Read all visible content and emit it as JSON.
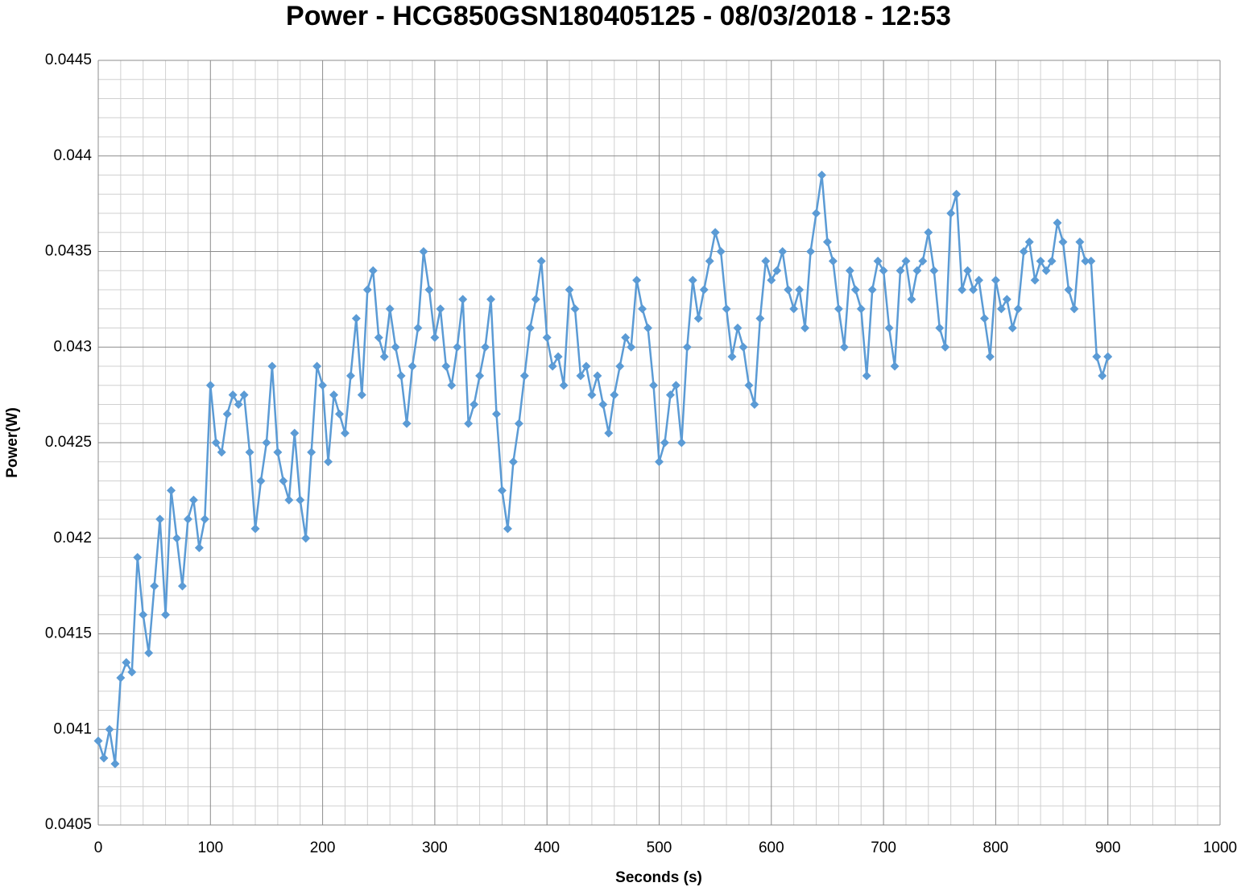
{
  "chart_data": {
    "type": "line",
    "title": "Power - HCG850GSN180405125 - 08/03/2018 - 12:53",
    "xlabel": "Seconds (s)",
    "ylabel": "Power(W)",
    "color": "#5b9bd5",
    "marker": "diamond",
    "grid": true,
    "minor_grid_divisions": 5,
    "xlim": [
      0,
      1000
    ],
    "xticks": [
      0,
      100,
      200,
      300,
      400,
      500,
      600,
      700,
      800,
      900,
      1000
    ],
    "ylim": [
      0.0405,
      0.0445
    ],
    "yticks": [
      0.0405,
      0.041,
      0.0415,
      0.042,
      0.0425,
      0.043,
      0.0435,
      0.044,
      0.0445
    ],
    "x": [
      0,
      5,
      10,
      15,
      20,
      25,
      30,
      35,
      40,
      45,
      50,
      55,
      60,
      65,
      70,
      75,
      80,
      85,
      90,
      95,
      100,
      105,
      110,
      115,
      120,
      125,
      130,
      135,
      140,
      145,
      150,
      155,
      160,
      165,
      170,
      175,
      180,
      185,
      190,
      195,
      200,
      205,
      210,
      215,
      220,
      225,
      230,
      235,
      240,
      245,
      250,
      255,
      260,
      265,
      270,
      275,
      280,
      285,
      290,
      295,
      300,
      305,
      310,
      315,
      320,
      325,
      330,
      335,
      340,
      345,
      350,
      355,
      360,
      365,
      370,
      375,
      380,
      385,
      390,
      395,
      400,
      405,
      410,
      415,
      420,
      425,
      430,
      435,
      440,
      445,
      450,
      455,
      460,
      465,
      470,
      475,
      480,
      485,
      490,
      495,
      500,
      505,
      510,
      515,
      520,
      525,
      530,
      535,
      540,
      545,
      550,
      555,
      560,
      565,
      570,
      575,
      580,
      585,
      590,
      595,
      600,
      605,
      610,
      615,
      620,
      625,
      630,
      635,
      640,
      645,
      650,
      655,
      660,
      665,
      670,
      675,
      680,
      685,
      690,
      695,
      700,
      705,
      710,
      715,
      720,
      725,
      730,
      735,
      740,
      745,
      750,
      755,
      760,
      765,
      770,
      775,
      780,
      785,
      790,
      795,
      800,
      805,
      810,
      815,
      820,
      825,
      830,
      835,
      840,
      845,
      850,
      855,
      860,
      865,
      870,
      875,
      880,
      885,
      890,
      895,
      900
    ],
    "values": [
      0.04094,
      0.04085,
      0.041,
      0.04082,
      0.04127,
      0.04135,
      0.0413,
      0.0419,
      0.0416,
      0.0414,
      0.04175,
      0.0421,
      0.0416,
      0.04225,
      0.042,
      0.04175,
      0.0421,
      0.0422,
      0.04195,
      0.0421,
      0.0428,
      0.0425,
      0.04245,
      0.04265,
      0.04275,
      0.0427,
      0.04275,
      0.04245,
      0.04205,
      0.0423,
      0.0425,
      0.0429,
      0.04245,
      0.0423,
      0.0422,
      0.04255,
      0.0422,
      0.042,
      0.04245,
      0.0429,
      0.0428,
      0.0424,
      0.04275,
      0.04265,
      0.04255,
      0.04285,
      0.04315,
      0.04275,
      0.0433,
      0.0434,
      0.04305,
      0.04295,
      0.0432,
      0.043,
      0.04285,
      0.0426,
      0.0429,
      0.0431,
      0.0435,
      0.0433,
      0.04305,
      0.0432,
      0.0429,
      0.0428,
      0.043,
      0.04325,
      0.0426,
      0.0427,
      0.04285,
      0.043,
      0.04325,
      0.04265,
      0.04225,
      0.04205,
      0.0424,
      0.0426,
      0.04285,
      0.0431,
      0.04325,
      0.04345,
      0.04305,
      0.0429,
      0.04295,
      0.0428,
      0.0433,
      0.0432,
      0.04285,
      0.0429,
      0.04275,
      0.04285,
      0.0427,
      0.04255,
      0.04275,
      0.0429,
      0.04305,
      0.043,
      0.04335,
      0.0432,
      0.0431,
      0.0428,
      0.0424,
      0.0425,
      0.04275,
      0.0428,
      0.0425,
      0.043,
      0.04335,
      0.04315,
      0.0433,
      0.04345,
      0.0436,
      0.0435,
      0.0432,
      0.04295,
      0.0431,
      0.043,
      0.0428,
      0.0427,
      0.04315,
      0.04345,
      0.04335,
      0.0434,
      0.0435,
      0.0433,
      0.0432,
      0.0433,
      0.0431,
      0.0435,
      0.0437,
      0.0439,
      0.04355,
      0.04345,
      0.0432,
      0.043,
      0.0434,
      0.0433,
      0.0432,
      0.04285,
      0.0433,
      0.04345,
      0.0434,
      0.0431,
      0.0429,
      0.0434,
      0.04345,
      0.04325,
      0.0434,
      0.04345,
      0.0436,
      0.0434,
      0.0431,
      0.043,
      0.0437,
      0.0438,
      0.0433,
      0.0434,
      0.0433,
      0.04335,
      0.04315,
      0.04295,
      0.04335,
      0.0432,
      0.04325,
      0.0431,
      0.0432,
      0.0435,
      0.04355,
      0.04335,
      0.04345,
      0.0434,
      0.04345,
      0.04365,
      0.04355,
      0.0433,
      0.0432,
      0.04355,
      0.04345,
      0.04345,
      0.04295,
      0.04285,
      0.04295
    ]
  }
}
